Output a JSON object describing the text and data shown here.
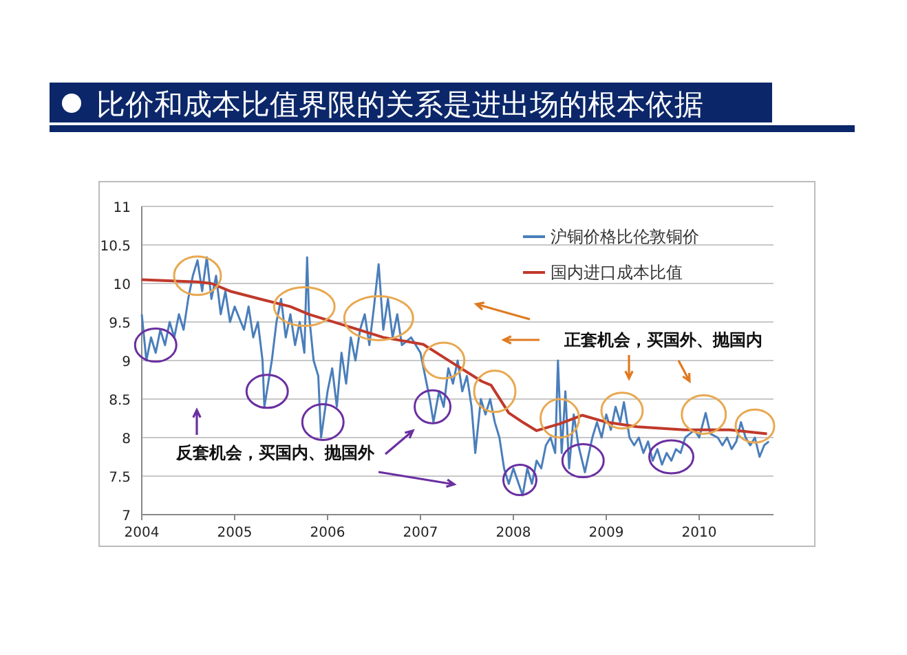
{
  "chart_data": {
    "type": "line",
    "title": "比价和成本比值界限的关系是进出场的根本依据",
    "xlim": [
      2004,
      2010.8
    ],
    "xticks": [
      2004,
      2005,
      2006,
      2007,
      2008,
      2009,
      2010
    ],
    "ylim": [
      7,
      11
    ],
    "yticks": [
      7,
      7.5,
      8,
      8.5,
      9,
      9.5,
      10,
      10.5,
      11
    ],
    "grid": "y",
    "legend": "top right",
    "marker": "none",
    "line_style": "solid",
    "annotations": [
      "正套机会，买国外、抛国内",
      "反套机会，买国内、抛国外"
    ],
    "series": [
      {
        "name": "沪铜价格比伦敦铜价",
        "color": "#4a7ebb",
        "x": [
          2004.0,
          2004.05,
          2004.1,
          2004.15,
          2004.2,
          2004.25,
          2004.3,
          2004.35,
          2004.4,
          2004.45,
          2004.5,
          2004.55,
          2004.6,
          2004.65,
          2004.7,
          2004.75,
          2004.8,
          2004.85,
          2004.9,
          2004.95,
          2005.0,
          2005.1,
          2005.15,
          2005.2,
          2005.25,
          2005.3,
          2005.32,
          2005.4,
          2005.45,
          2005.5,
          2005.55,
          2005.6,
          2005.65,
          2005.7,
          2005.75,
          2005.78,
          2005.8,
          2005.85,
          2005.9,
          2005.93,
          2006.0,
          2006.05,
          2006.1,
          2006.15,
          2006.2,
          2006.25,
          2006.3,
          2006.35,
          2006.4,
          2006.45,
          2006.5,
          2006.55,
          2006.6,
          2006.65,
          2006.7,
          2006.75,
          2006.8,
          2006.9,
          2007.0,
          2007.05,
          2007.1,
          2007.14,
          2007.2,
          2007.25,
          2007.3,
          2007.35,
          2007.4,
          2007.45,
          2007.5,
          2007.55,
          2007.59,
          2007.65,
          2007.7,
          2007.75,
          2007.8,
          2007.85,
          2007.9,
          2007.95,
          2008.0,
          2008.1,
          2008.15,
          2008.2,
          2008.25,
          2008.3,
          2008.35,
          2008.4,
          2008.45,
          2008.48,
          2008.52,
          2008.56,
          2008.6,
          2008.65,
          2008.7,
          2008.77,
          2008.85,
          2008.9,
          2008.95,
          2009.0,
          2009.05,
          2009.1,
          2009.15,
          2009.19,
          2009.25,
          2009.3,
          2009.35,
          2009.4,
          2009.45,
          2009.5,
          2009.55,
          2009.6,
          2009.65,
          2009.7,
          2009.75,
          2009.8,
          2009.85,
          2009.9,
          2009.95,
          2010.0,
          2010.07,
          2010.12,
          2010.2,
          2010.25,
          2010.3,
          2010.35,
          2010.4,
          2010.45,
          2010.5,
          2010.55,
          2010.6,
          2010.65,
          2010.7,
          2010.75
        ],
        "values": [
          9.6,
          9.0,
          9.3,
          9.1,
          9.4,
          9.2,
          9.5,
          9.3,
          9.6,
          9.4,
          9.8,
          10.1,
          10.3,
          9.9,
          10.34,
          9.8,
          10.1,
          9.6,
          9.9,
          9.5,
          9.7,
          9.4,
          9.7,
          9.3,
          9.5,
          9.0,
          8.4,
          9.0,
          9.5,
          9.8,
          9.3,
          9.6,
          9.2,
          9.5,
          9.1,
          10.34,
          9.6,
          9.0,
          8.8,
          8.0,
          8.6,
          8.9,
          8.4,
          9.1,
          8.7,
          9.3,
          9.0,
          9.4,
          9.6,
          9.2,
          9.7,
          10.25,
          9.4,
          9.8,
          9.3,
          9.6,
          9.2,
          9.3,
          9.1,
          8.8,
          8.5,
          8.2,
          8.6,
          8.4,
          8.9,
          8.7,
          9.0,
          8.6,
          8.8,
          8.4,
          7.8,
          8.5,
          8.3,
          8.5,
          8.2,
          8.0,
          7.6,
          7.4,
          7.6,
          7.25,
          7.6,
          7.4,
          7.7,
          7.6,
          7.9,
          8.0,
          7.8,
          9.0,
          7.8,
          8.6,
          7.6,
          8.3,
          7.9,
          7.55,
          8.0,
          8.2,
          8.0,
          8.3,
          8.1,
          8.4,
          8.2,
          8.46,
          8.0,
          7.9,
          8.0,
          7.8,
          7.95,
          7.7,
          7.85,
          7.65,
          7.8,
          7.7,
          7.85,
          7.8,
          8.0,
          8.05,
          8.1,
          8.0,
          8.32,
          8.05,
          8.0,
          7.9,
          8.0,
          7.85,
          7.95,
          8.2,
          8.0,
          7.9,
          8.0,
          7.75,
          7.9,
          7.95
        ]
      },
      {
        "name": "国内进口成本比值",
        "color": "#c0392b",
        "x": [
          2004.0,
          2004.6,
          2004.75,
          2004.95,
          2005.3,
          2005.6,
          2005.8,
          2006.6,
          2007.03,
          2007.37,
          2007.66,
          2007.76,
          2007.95,
          2008.1,
          2008.25,
          2008.5,
          2008.74,
          2009.0,
          2009.33,
          2009.84,
          2010.33,
          2010.73
        ],
        "values": [
          10.05,
          10.02,
          10.0,
          9.9,
          9.79,
          9.7,
          9.6,
          9.3,
          9.21,
          8.95,
          8.73,
          8.68,
          8.32,
          8.2,
          8.09,
          8.18,
          8.29,
          8.2,
          8.14,
          8.1,
          8.1,
          8.05
        ]
      }
    ]
  }
}
